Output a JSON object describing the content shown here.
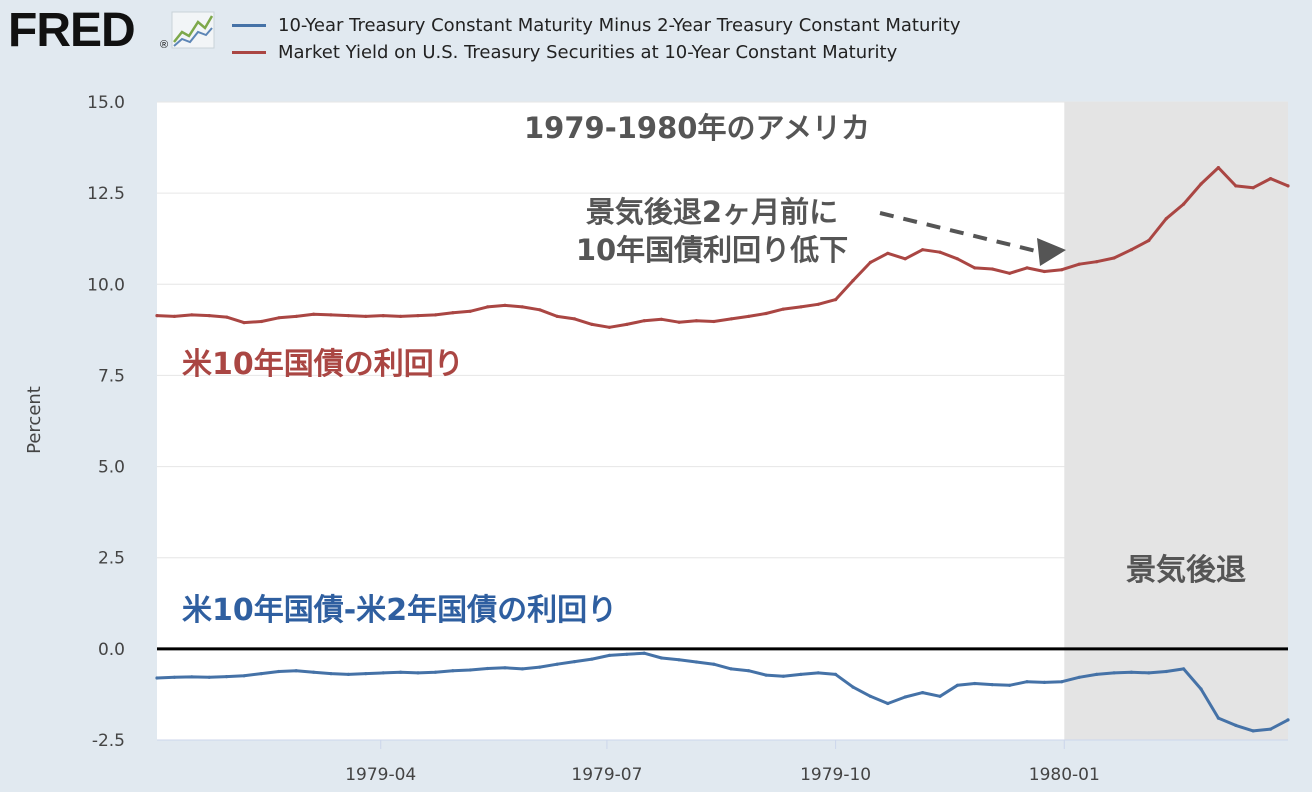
{
  "logo": {
    "text": "FRED",
    "mark": "®"
  },
  "legend": [
    {
      "name": "10-Year Treasury Constant Maturity Minus 2-Year Treasury Constant Maturity",
      "color": "#4572a7"
    },
    {
      "name": "Market Yield on U.S. Treasury Securities at 10-Year Constant Maturity",
      "color": "#aa4643"
    }
  ],
  "chart_data": {
    "type": "line",
    "title": "1979-1980年のアメリカ",
    "ylabel": "Percent",
    "ylim": [
      -2.5,
      15.0
    ],
    "xlim": [
      "1979-01-01",
      "1980-03-31"
    ],
    "yticks": [
      "15.0",
      "12.5",
      "10.0",
      "7.5",
      "5.0",
      "2.5",
      "0.0",
      "-2.5"
    ],
    "xticks": [
      {
        "date": "1979-04-01",
        "label": "1979-04"
      },
      {
        "date": "1979-07-01",
        "label": "1979-07"
      },
      {
        "date": "1979-10-01",
        "label": "1979-10"
      },
      {
        "date": "1980-01-01",
        "label": "1980-01"
      }
    ],
    "recession": {
      "start": "1980-01-01",
      "end": "1980-03-31",
      "label": "景気後退"
    },
    "zero_line": 0,
    "annotations": [
      {
        "text": "景気後退2ヶ月前に",
        "color": "#555555"
      },
      {
        "text": "10年国債利回り低下",
        "color": "#555555"
      },
      {
        "text": "米10年国債の利回り",
        "color": "#aa4643"
      },
      {
        "text": "米10年国債-米2年国債の利回り",
        "color": "#2f5fa0"
      }
    ],
    "series": [
      {
        "name": "Market Yield on U.S. Treasury Securities at 10-Year Constant Maturity",
        "color": "#aa4643",
        "points": [
          [
            "1979-01-01",
            9.14
          ],
          [
            "1979-01-08",
            9.12
          ],
          [
            "1979-01-15",
            9.16
          ],
          [
            "1979-01-22",
            9.14
          ],
          [
            "1979-01-29",
            9.1
          ],
          [
            "1979-02-05",
            8.95
          ],
          [
            "1979-02-12",
            8.98
          ],
          [
            "1979-02-19",
            9.08
          ],
          [
            "1979-02-26",
            9.12
          ],
          [
            "1979-03-05",
            9.18
          ],
          [
            "1979-03-12",
            9.16
          ],
          [
            "1979-03-19",
            9.14
          ],
          [
            "1979-03-26",
            9.12
          ],
          [
            "1979-04-02",
            9.14
          ],
          [
            "1979-04-09",
            9.12
          ],
          [
            "1979-04-16",
            9.14
          ],
          [
            "1979-04-23",
            9.16
          ],
          [
            "1979-04-30",
            9.22
          ],
          [
            "1979-05-07",
            9.26
          ],
          [
            "1979-05-14",
            9.38
          ],
          [
            "1979-05-21",
            9.42
          ],
          [
            "1979-05-28",
            9.38
          ],
          [
            "1979-06-04",
            9.3
          ],
          [
            "1979-06-11",
            9.12
          ],
          [
            "1979-06-18",
            9.05
          ],
          [
            "1979-06-25",
            8.9
          ],
          [
            "1979-07-02",
            8.82
          ],
          [
            "1979-07-09",
            8.9
          ],
          [
            "1979-07-16",
            9.0
          ],
          [
            "1979-07-23",
            9.04
          ],
          [
            "1979-07-30",
            8.96
          ],
          [
            "1979-08-06",
            9.0
          ],
          [
            "1979-08-13",
            8.98
          ],
          [
            "1979-08-20",
            9.05
          ],
          [
            "1979-08-27",
            9.12
          ],
          [
            "1979-09-03",
            9.2
          ],
          [
            "1979-09-10",
            9.32
          ],
          [
            "1979-09-17",
            9.38
          ],
          [
            "1979-09-24",
            9.45
          ],
          [
            "1979-10-01",
            9.58
          ],
          [
            "1979-10-08",
            10.1
          ],
          [
            "1979-10-15",
            10.6
          ],
          [
            "1979-10-22",
            10.85
          ],
          [
            "1979-10-29",
            10.7
          ],
          [
            "1979-11-05",
            10.95
          ],
          [
            "1979-11-12",
            10.88
          ],
          [
            "1979-11-19",
            10.7
          ],
          [
            "1979-11-26",
            10.45
          ],
          [
            "1979-12-03",
            10.42
          ],
          [
            "1979-12-10",
            10.3
          ],
          [
            "1979-12-17",
            10.45
          ],
          [
            "1979-12-24",
            10.35
          ],
          [
            "1979-12-31",
            10.4
          ],
          [
            "1980-01-07",
            10.55
          ],
          [
            "1980-01-14",
            10.62
          ],
          [
            "1980-01-21",
            10.72
          ],
          [
            "1980-01-28",
            10.95
          ],
          [
            "1980-02-04",
            11.2
          ],
          [
            "1980-02-11",
            11.8
          ],
          [
            "1980-02-18",
            12.2
          ],
          [
            "1980-02-25",
            12.75
          ],
          [
            "1980-03-03",
            13.2
          ],
          [
            "1980-03-10",
            12.7
          ],
          [
            "1980-03-17",
            12.65
          ],
          [
            "1980-03-24",
            12.9
          ],
          [
            "1980-03-31",
            12.7
          ]
        ]
      },
      {
        "name": "10-Year Treasury Constant Maturity Minus 2-Year Treasury Constant Maturity",
        "color": "#4572a7",
        "points": [
          [
            "1979-01-01",
            -0.8
          ],
          [
            "1979-01-08",
            -0.78
          ],
          [
            "1979-01-15",
            -0.77
          ],
          [
            "1979-01-22",
            -0.78
          ],
          [
            "1979-01-29",
            -0.76
          ],
          [
            "1979-02-05",
            -0.74
          ],
          [
            "1979-02-12",
            -0.68
          ],
          [
            "1979-02-19",
            -0.62
          ],
          [
            "1979-02-26",
            -0.6
          ],
          [
            "1979-03-05",
            -0.64
          ],
          [
            "1979-03-12",
            -0.68
          ],
          [
            "1979-03-19",
            -0.7
          ],
          [
            "1979-03-26",
            -0.68
          ],
          [
            "1979-04-02",
            -0.66
          ],
          [
            "1979-04-09",
            -0.64
          ],
          [
            "1979-04-16",
            -0.66
          ],
          [
            "1979-04-23",
            -0.64
          ],
          [
            "1979-04-30",
            -0.6
          ],
          [
            "1979-05-07",
            -0.58
          ],
          [
            "1979-05-14",
            -0.54
          ],
          [
            "1979-05-21",
            -0.52
          ],
          [
            "1979-05-28",
            -0.55
          ],
          [
            "1979-06-04",
            -0.5
          ],
          [
            "1979-06-11",
            -0.42
          ],
          [
            "1979-06-18",
            -0.35
          ],
          [
            "1979-06-25",
            -0.28
          ],
          [
            "1979-07-02",
            -0.18
          ],
          [
            "1979-07-09",
            -0.15
          ],
          [
            "1979-07-16",
            -0.12
          ],
          [
            "1979-07-23",
            -0.25
          ],
          [
            "1979-07-30",
            -0.3
          ],
          [
            "1979-08-06",
            -0.36
          ],
          [
            "1979-08-13",
            -0.42
          ],
          [
            "1979-08-20",
            -0.55
          ],
          [
            "1979-08-27",
            -0.6
          ],
          [
            "1979-09-03",
            -0.72
          ],
          [
            "1979-09-10",
            -0.75
          ],
          [
            "1979-09-17",
            -0.7
          ],
          [
            "1979-09-24",
            -0.66
          ],
          [
            "1979-10-01",
            -0.7
          ],
          [
            "1979-10-08",
            -1.05
          ],
          [
            "1979-10-15",
            -1.3
          ],
          [
            "1979-10-22",
            -1.5
          ],
          [
            "1979-10-29",
            -1.32
          ],
          [
            "1979-11-05",
            -1.2
          ],
          [
            "1979-11-12",
            -1.3
          ],
          [
            "1979-11-19",
            -1.0
          ],
          [
            "1979-11-26",
            -0.95
          ],
          [
            "1979-12-03",
            -0.98
          ],
          [
            "1979-12-10",
            -1.0
          ],
          [
            "1979-12-17",
            -0.9
          ],
          [
            "1979-12-24",
            -0.92
          ],
          [
            "1979-12-31",
            -0.9
          ],
          [
            "1980-01-07",
            -0.78
          ],
          [
            "1980-01-14",
            -0.7
          ],
          [
            "1980-01-21",
            -0.66
          ],
          [
            "1980-01-28",
            -0.64
          ],
          [
            "1980-02-04",
            -0.66
          ],
          [
            "1980-02-11",
            -0.62
          ],
          [
            "1980-02-18",
            -0.55
          ],
          [
            "1980-02-25",
            -1.1
          ],
          [
            "1980-03-03",
            -1.9
          ],
          [
            "1980-03-10",
            -2.1
          ],
          [
            "1980-03-17",
            -2.25
          ],
          [
            "1980-03-24",
            -2.2
          ],
          [
            "1980-03-31",
            -1.95
          ]
        ]
      }
    ]
  }
}
